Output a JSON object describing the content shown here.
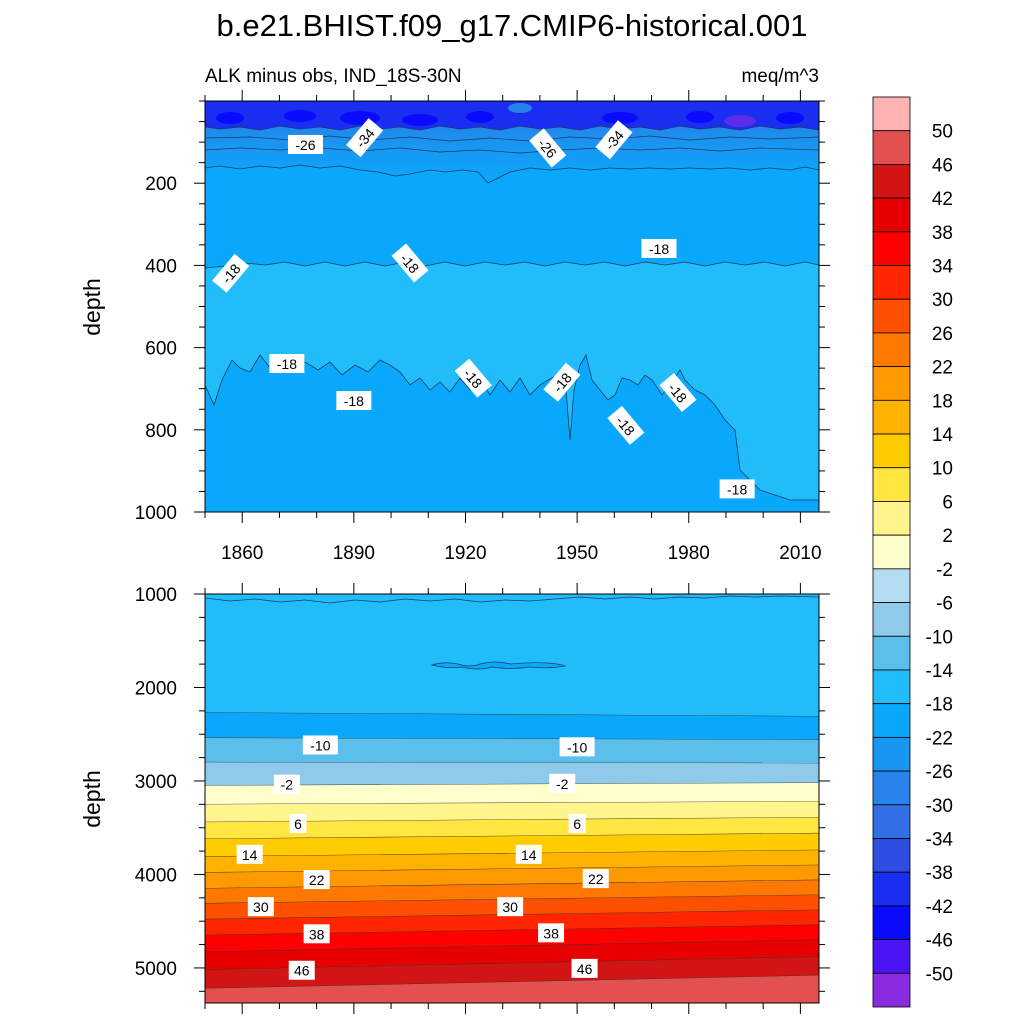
{
  "chart_data": [
    {
      "type": "heatmap",
      "panel": "upper",
      "title": "b.e21.BHIST.f09_g17.CMIP6-historical.001",
      "subtitle_left": "ALK minus obs, IND_18S-30N",
      "subtitle_right": "meq/m^3",
      "xlabel": "",
      "ylabel": "depth",
      "xlim": [
        1850,
        2015
      ],
      "ylim": [
        1000,
        0
      ],
      "x_ticks": [
        1860,
        1890,
        1920,
        1950,
        1980,
        2010
      ],
      "x_tick_labels": [
        "1860",
        "1890",
        "1920",
        "1950",
        "1980",
        "2010"
      ],
      "y_ticks": [
        200,
        400,
        600,
        800,
        1000
      ],
      "y_tick_labels": [
        "200",
        "400",
        "600",
        "800",
        "1000"
      ],
      "contour_labels": [
        {
          "text": "-26",
          "x": 1877,
          "y": 107
        },
        {
          "text": "-34",
          "x": 1893,
          "y": 90
        },
        {
          "text": "-26",
          "x": 1942,
          "y": 115
        },
        {
          "text": "-34",
          "x": 1960,
          "y": 95
        },
        {
          "text": "-18",
          "x": 1857,
          "y": 420
        },
        {
          "text": "-18",
          "x": 1905,
          "y": 395
        },
        {
          "text": "-18",
          "x": 1972,
          "y": 360
        },
        {
          "text": "-18",
          "x": 1872,
          "y": 640
        },
        {
          "text": "-18",
          "x": 1890,
          "y": 730
        },
        {
          "text": "-18",
          "x": 1922,
          "y": 675
        },
        {
          "text": "-18",
          "x": 1946,
          "y": 685
        },
        {
          "text": "-18",
          "x": 1963,
          "y": 790
        },
        {
          "text": "-18",
          "x": 1977,
          "y": 710
        },
        {
          "text": "-18",
          "x": 1993,
          "y": 945
        }
      ]
    },
    {
      "type": "heatmap",
      "panel": "lower",
      "xlabel": "",
      "ylabel": "depth",
      "xlim": [
        1850,
        2015
      ],
      "ylim": [
        5375,
        1000
      ],
      "y_ticks": [
        1000,
        2000,
        3000,
        4000,
        5000
      ],
      "y_tick_labels": [
        "1000",
        "2000",
        "3000",
        "4000",
        "5000"
      ],
      "contour_labels": [
        {
          "text": "-10",
          "x": 1881,
          "y": 2620
        },
        {
          "text": "-10",
          "x": 1950,
          "y": 2640
        },
        {
          "text": "-2",
          "x": 1872,
          "y": 3040
        },
        {
          "text": "-2",
          "x": 1946,
          "y": 3030
        },
        {
          "text": "6",
          "x": 1875,
          "y": 3460
        },
        {
          "text": "6",
          "x": 1950,
          "y": 3460
        },
        {
          "text": "14",
          "x": 1862,
          "y": 3790
        },
        {
          "text": "14",
          "x": 1937,
          "y": 3790
        },
        {
          "text": "22",
          "x": 1880,
          "y": 4060
        },
        {
          "text": "22",
          "x": 1955,
          "y": 4050
        },
        {
          "text": "30",
          "x": 1865,
          "y": 4350
        },
        {
          "text": "30",
          "x": 1932,
          "y": 4350
        },
        {
          "text": "38",
          "x": 1880,
          "y": 4640
        },
        {
          "text": "38",
          "x": 1943,
          "y": 4630
        },
        {
          "text": "46",
          "x": 1876,
          "y": 5030
        },
        {
          "text": "46",
          "x": 1952,
          "y": 5010
        }
      ]
    }
  ],
  "colorbar": {
    "labels": [
      "50",
      "46",
      "42",
      "38",
      "34",
      "30",
      "26",
      "22",
      "18",
      "14",
      "10",
      "6",
      "2",
      "-2",
      "-6",
      "-10",
      "-14",
      "-18",
      "-22",
      "-26",
      "-30",
      "-34",
      "-38",
      "-42",
      "-46",
      "-50"
    ],
    "colors": [
      "#ffb3b3",
      "#e35050",
      "#d11414",
      "#e60000",
      "#ff0000",
      "#ff2600",
      "#ff5000",
      "#ff7800",
      "#ff9900",
      "#ffb300",
      "#ffcc00",
      "#ffe640",
      "#fff58c",
      "#ffffcc",
      "#b3dcf2",
      "#8fcaeb",
      "#5bbfeb",
      "#21bdfa",
      "#0aa8fc",
      "#1897f2",
      "#2882ec",
      "#326ee6",
      "#2d4ee0",
      "#1a2ef0",
      "#0a0aff",
      "#4a14f5",
      "#8a2be2"
    ]
  }
}
